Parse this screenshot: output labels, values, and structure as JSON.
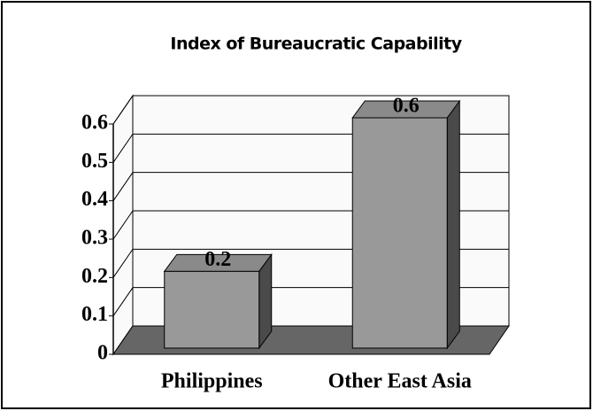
{
  "chart_data": {
    "type": "bar3d",
    "title": "Index of Bureaucratic Capability",
    "categories": [
      "Philippines",
      "Other East Asia"
    ],
    "values": [
      0.2,
      0.6
    ],
    "color": "#999999",
    "ylim": [
      0,
      0.6
    ],
    "yticks": [
      0,
      0.1,
      0.2,
      0.3,
      0.4,
      0.5,
      0.6
    ],
    "grid": true
  }
}
